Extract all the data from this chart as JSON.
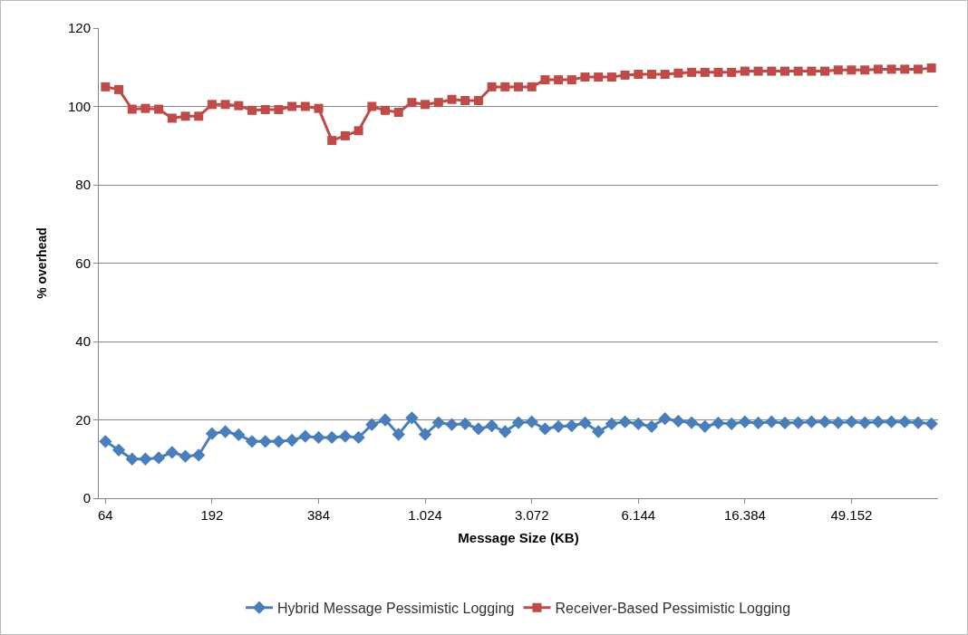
{
  "chart_data": {
    "type": "line",
    "xlabel": "Message Size (KB)",
    "ylabel": "% overhead",
    "categories": [
      "64",
      null,
      null,
      null,
      null,
      null,
      null,
      null,
      "192",
      null,
      null,
      null,
      null,
      null,
      null,
      null,
      "384",
      null,
      null,
      null,
      null,
      null,
      null,
      null,
      "1.024",
      null,
      null,
      null,
      null,
      null,
      null,
      null,
      "3.072",
      null,
      null,
      null,
      null,
      null,
      null,
      null,
      "6.144",
      null,
      null,
      null,
      null,
      null,
      null,
      null,
      "16.384",
      null,
      null,
      null,
      null,
      null,
      null,
      null,
      "49.152",
      null,
      null,
      null,
      null,
      null,
      null
    ],
    "series": [
      {
        "name": "Hybrid Message Pessimistic Logging",
        "color": "#4a7ebb",
        "marker": "diamond",
        "values": [
          14.5,
          12.3,
          10,
          10,
          10.3,
          11.7,
          10.7,
          11,
          16.5,
          17,
          16.2,
          14.5,
          14.5,
          14.5,
          14.8,
          15.8,
          15.5,
          15.5,
          15.8,
          15.5,
          18.8,
          20,
          16.3,
          20.5,
          16.3,
          19.3,
          18.8,
          19,
          17.7,
          18.5,
          17,
          19.3,
          19.5,
          17.7,
          18.3,
          18.5,
          19.2,
          17,
          19,
          19.5,
          19,
          18.3,
          20.3,
          19.7,
          19.3,
          18.3,
          19.2,
          19,
          19.5,
          19.2,
          19.5,
          19.2,
          19.3,
          19.5,
          19.5,
          19.3,
          19.5,
          19.3,
          19.5,
          19.5,
          19.5,
          19.3,
          19
        ]
      },
      {
        "name": "Receiver-Based Pessimistic Logging",
        "color": "#be4b48",
        "marker": "square",
        "values": [
          105,
          104.3,
          99.3,
          99.5,
          99.3,
          97,
          97.5,
          97.5,
          100.5,
          100.5,
          100.2,
          99,
          99.2,
          99.2,
          100,
          100,
          99.5,
          91.3,
          92.5,
          93.8,
          100,
          99,
          98.5,
          101,
          100.5,
          101,
          101.8,
          101.5,
          101.5,
          105,
          105,
          105,
          105,
          106.8,
          106.8,
          106.8,
          107.5,
          107.5,
          107.5,
          108,
          108.2,
          108.2,
          108.2,
          108.5,
          108.7,
          108.7,
          108.7,
          108.7,
          109,
          109,
          109,
          109,
          109,
          109,
          109,
          109.3,
          109.3,
          109.3,
          109.5,
          109.5,
          109.5,
          109.5,
          109.8
        ]
      }
    ],
    "ylim": [
      0,
      120
    ],
    "yticks": [
      0,
      20,
      40,
      60,
      80,
      100,
      120
    ],
    "grid": "y",
    "legend": "bottom",
    "line_style": "solid"
  }
}
